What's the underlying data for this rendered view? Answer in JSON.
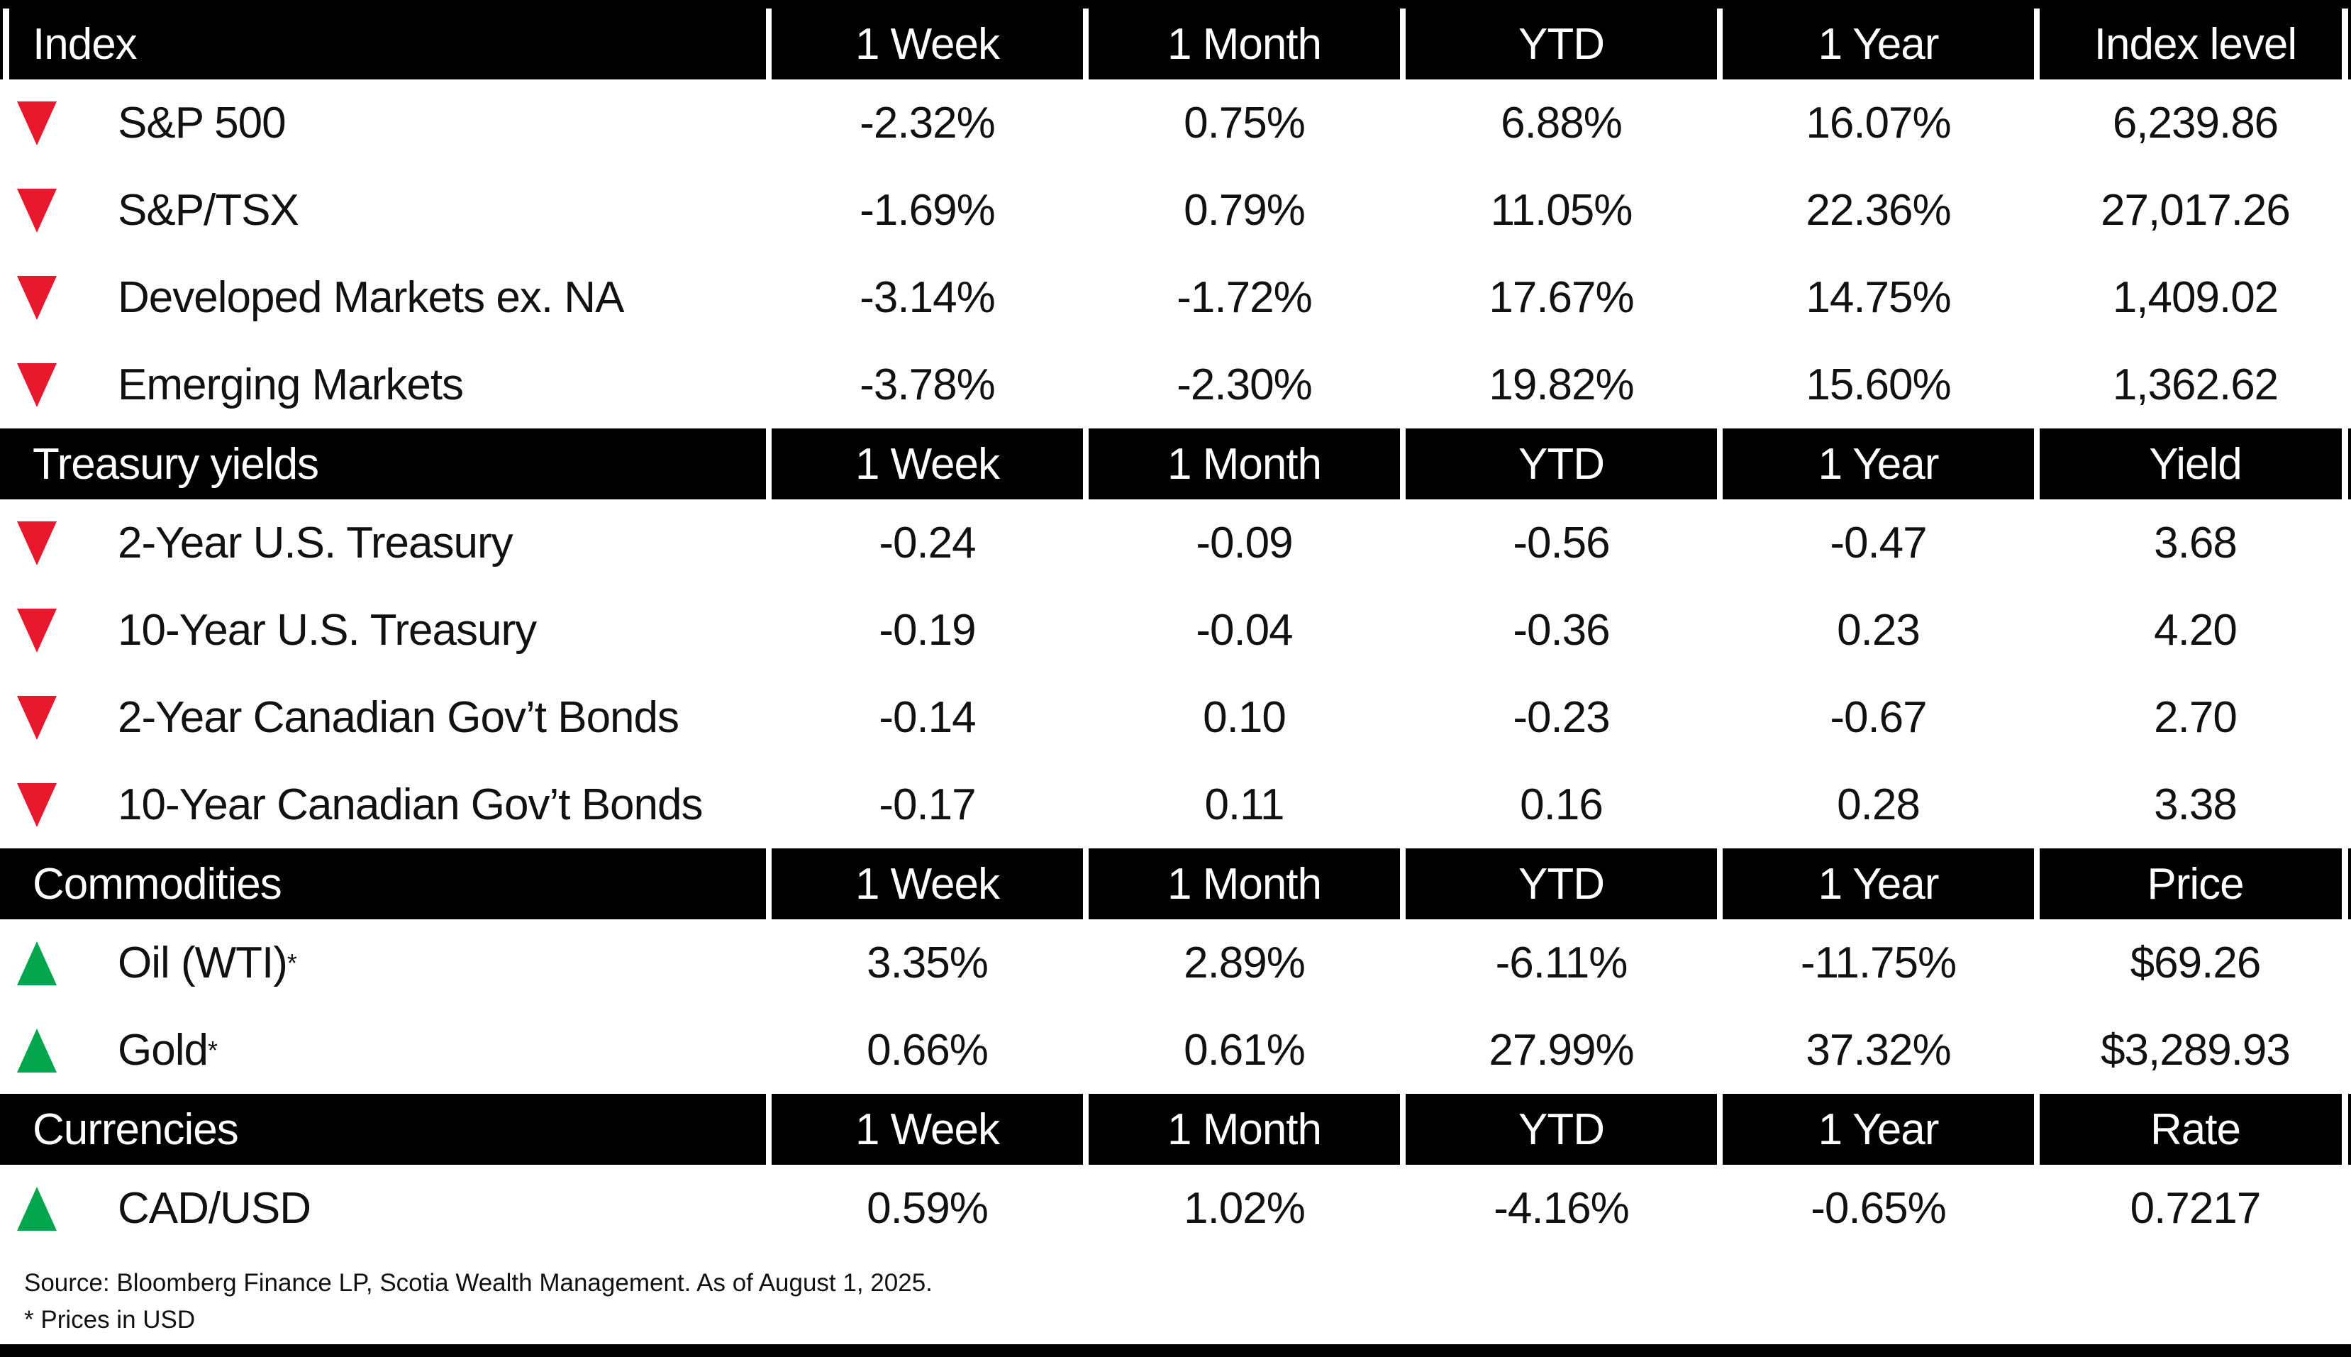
{
  "colors": {
    "header_bg": "#000000",
    "down_red": "#E8192C",
    "up_green": "#04A64D",
    "text": "#111111"
  },
  "sections": [
    {
      "title": "Index",
      "columns": [
        "1 Week",
        "1 Month",
        "YTD",
        "1 Year",
        "Index level"
      ],
      "rows": [
        {
          "direction": "down",
          "label": "S&P 500",
          "values": [
            "-2.32%",
            "0.75%",
            "6.88%",
            "16.07%",
            "6,239.86"
          ]
        },
        {
          "direction": "down",
          "label": "S&P/TSX",
          "values": [
            "-1.69%",
            "0.79%",
            "11.05%",
            "22.36%",
            "27,017.26"
          ]
        },
        {
          "direction": "down",
          "label": "Developed Markets ex. NA",
          "values": [
            "-3.14%",
            "-1.72%",
            "17.67%",
            "14.75%",
            "1,409.02"
          ]
        },
        {
          "direction": "down",
          "label": "Emerging Markets",
          "values": [
            "-3.78%",
            "-2.30%",
            "19.82%",
            "15.60%",
            "1,362.62"
          ]
        }
      ]
    },
    {
      "title": "Treasury yields",
      "columns": [
        "1 Week",
        "1 Month",
        "YTD",
        "1 Year",
        "Yield"
      ],
      "rows": [
        {
          "direction": "down",
          "label": "2-Year U.S. Treasury",
          "values": [
            "-0.24",
            "-0.09",
            "-0.56",
            "-0.47",
            "3.68"
          ]
        },
        {
          "direction": "down",
          "label": "10-Year U.S. Treasury",
          "values": [
            "-0.19",
            "-0.04",
            "-0.36",
            "0.23",
            "4.20"
          ]
        },
        {
          "direction": "down",
          "label": "2-Year Canadian Gov’t Bonds",
          "values": [
            "-0.14",
            "0.10",
            "-0.23",
            "-0.67",
            "2.70"
          ]
        },
        {
          "direction": "down",
          "label": "10-Year Canadian Gov’t Bonds",
          "values": [
            "-0.17",
            "0.11",
            "0.16",
            "0.28",
            "3.38"
          ]
        }
      ]
    },
    {
      "title": "Commodities",
      "columns": [
        "1 Week",
        "1 Month",
        "YTD",
        "1 Year",
        "Price"
      ],
      "rows": [
        {
          "direction": "up",
          "label": "Oil (WTI)",
          "sup": "*",
          "values": [
            "3.35%",
            "2.89%",
            "-6.11%",
            "-11.75%",
            "$69.26"
          ]
        },
        {
          "direction": "up",
          "label": "Gold",
          "sup": "*",
          "values": [
            "0.66%",
            "0.61%",
            "27.99%",
            "37.32%",
            "$3,289.93"
          ]
        }
      ]
    },
    {
      "title": "Currencies",
      "columns": [
        "1 Week",
        "1 Month",
        "YTD",
        "1 Year",
        "Rate"
      ],
      "rows": [
        {
          "direction": "up",
          "label": "CAD/USD",
          "values": [
            "0.59%",
            "1.02%",
            "-4.16%",
            "-0.65%",
            "0.7217"
          ]
        }
      ]
    }
  ],
  "footer": {
    "source_line": "Source: Bloomberg Finance LP, Scotia Wealth Management. As of August 1, 2025.",
    "footnote_line": "* Prices in USD"
  },
  "chart_data": {
    "type": "table",
    "title": "Market performance summary",
    "as_of": "August 1, 2025",
    "tables": [
      {
        "section": "Index",
        "columns": [
          "1 Week",
          "1 Month",
          "YTD",
          "1 Year",
          "Index level"
        ],
        "rows": [
          {
            "name": "S&P 500",
            "trend": "down",
            "week_pct": -2.32,
            "month_pct": 0.75,
            "ytd_pct": 6.88,
            "year_pct": 16.07,
            "level": 6239.86
          },
          {
            "name": "S&P/TSX",
            "trend": "down",
            "week_pct": -1.69,
            "month_pct": 0.79,
            "ytd_pct": 11.05,
            "year_pct": 22.36,
            "level": 27017.26
          },
          {
            "name": "Developed Markets ex. NA",
            "trend": "down",
            "week_pct": -3.14,
            "month_pct": -1.72,
            "ytd_pct": 17.67,
            "year_pct": 14.75,
            "level": 1409.02
          },
          {
            "name": "Emerging Markets",
            "trend": "down",
            "week_pct": -3.78,
            "month_pct": -2.3,
            "ytd_pct": 19.82,
            "year_pct": 15.6,
            "level": 1362.62
          }
        ]
      },
      {
        "section": "Treasury yields",
        "columns": [
          "1 Week",
          "1 Month",
          "YTD",
          "1 Year",
          "Yield"
        ],
        "rows": [
          {
            "name": "2-Year U.S. Treasury",
            "trend": "down",
            "week": -0.24,
            "month": -0.09,
            "ytd": -0.56,
            "year": -0.47,
            "yield": 3.68
          },
          {
            "name": "10-Year U.S. Treasury",
            "trend": "down",
            "week": -0.19,
            "month": -0.04,
            "ytd": -0.36,
            "year": 0.23,
            "yield": 4.2
          },
          {
            "name": "2-Year Canadian Gov’t Bonds",
            "trend": "down",
            "week": -0.14,
            "month": 0.1,
            "ytd": -0.23,
            "year": -0.67,
            "yield": 2.7
          },
          {
            "name": "10-Year Canadian Gov’t Bonds",
            "trend": "down",
            "week": -0.17,
            "month": 0.11,
            "ytd": 0.16,
            "year": 0.28,
            "yield": 3.38
          }
        ]
      },
      {
        "section": "Commodities",
        "columns": [
          "1 Week",
          "1 Month",
          "YTD",
          "1 Year",
          "Price"
        ],
        "rows": [
          {
            "name": "Oil (WTI)",
            "trend": "up",
            "week_pct": 3.35,
            "month_pct": 2.89,
            "ytd_pct": -6.11,
            "year_pct": -11.75,
            "price_usd": 69.26
          },
          {
            "name": "Gold",
            "trend": "up",
            "week_pct": 0.66,
            "month_pct": 0.61,
            "ytd_pct": 27.99,
            "year_pct": 37.32,
            "price_usd": 3289.93
          }
        ]
      },
      {
        "section": "Currencies",
        "columns": [
          "1 Week",
          "1 Month",
          "YTD",
          "1 Year",
          "Rate"
        ],
        "rows": [
          {
            "name": "CAD/USD",
            "trend": "up",
            "week_pct": 0.59,
            "month_pct": 1.02,
            "ytd_pct": -4.16,
            "year_pct": -0.65,
            "rate": 0.7217
          }
        ]
      }
    ]
  }
}
